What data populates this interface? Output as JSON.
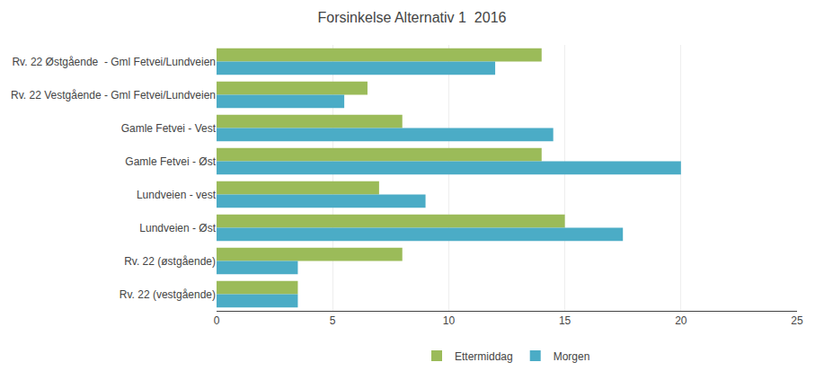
{
  "chart_data": {
    "type": "bar",
    "orientation": "horizontal",
    "title": "Forsinkelse Alternativ 1  2016",
    "categories": [
      "Rv. 22 Østgående  - Gml Fetvei/Lundveien",
      "Rv. 22 Vestgående - Gml Fetvei/Lundveien",
      "Gamle Fetvei - Vest",
      "Gamle Fetvei - Øst",
      "Lundveien - vest",
      "Lundveien - Øst",
      "Rv. 22 (østgående)",
      "Rv. 22 (vestgående)"
    ],
    "series": [
      {
        "name": "Ettermiddag",
        "color": "#9BBB59",
        "values": [
          14,
          6.5,
          8,
          14,
          7,
          15,
          8,
          3.5
        ]
      },
      {
        "name": "Morgen",
        "color": "#4BACC6",
        "values": [
          12,
          5.5,
          14.5,
          20,
          9,
          17.5,
          3.5,
          3.5
        ]
      }
    ],
    "xlim": [
      0,
      25
    ],
    "xticks": [
      0,
      5,
      10,
      15,
      20,
      25
    ],
    "grid": true,
    "legend": "bottom"
  }
}
